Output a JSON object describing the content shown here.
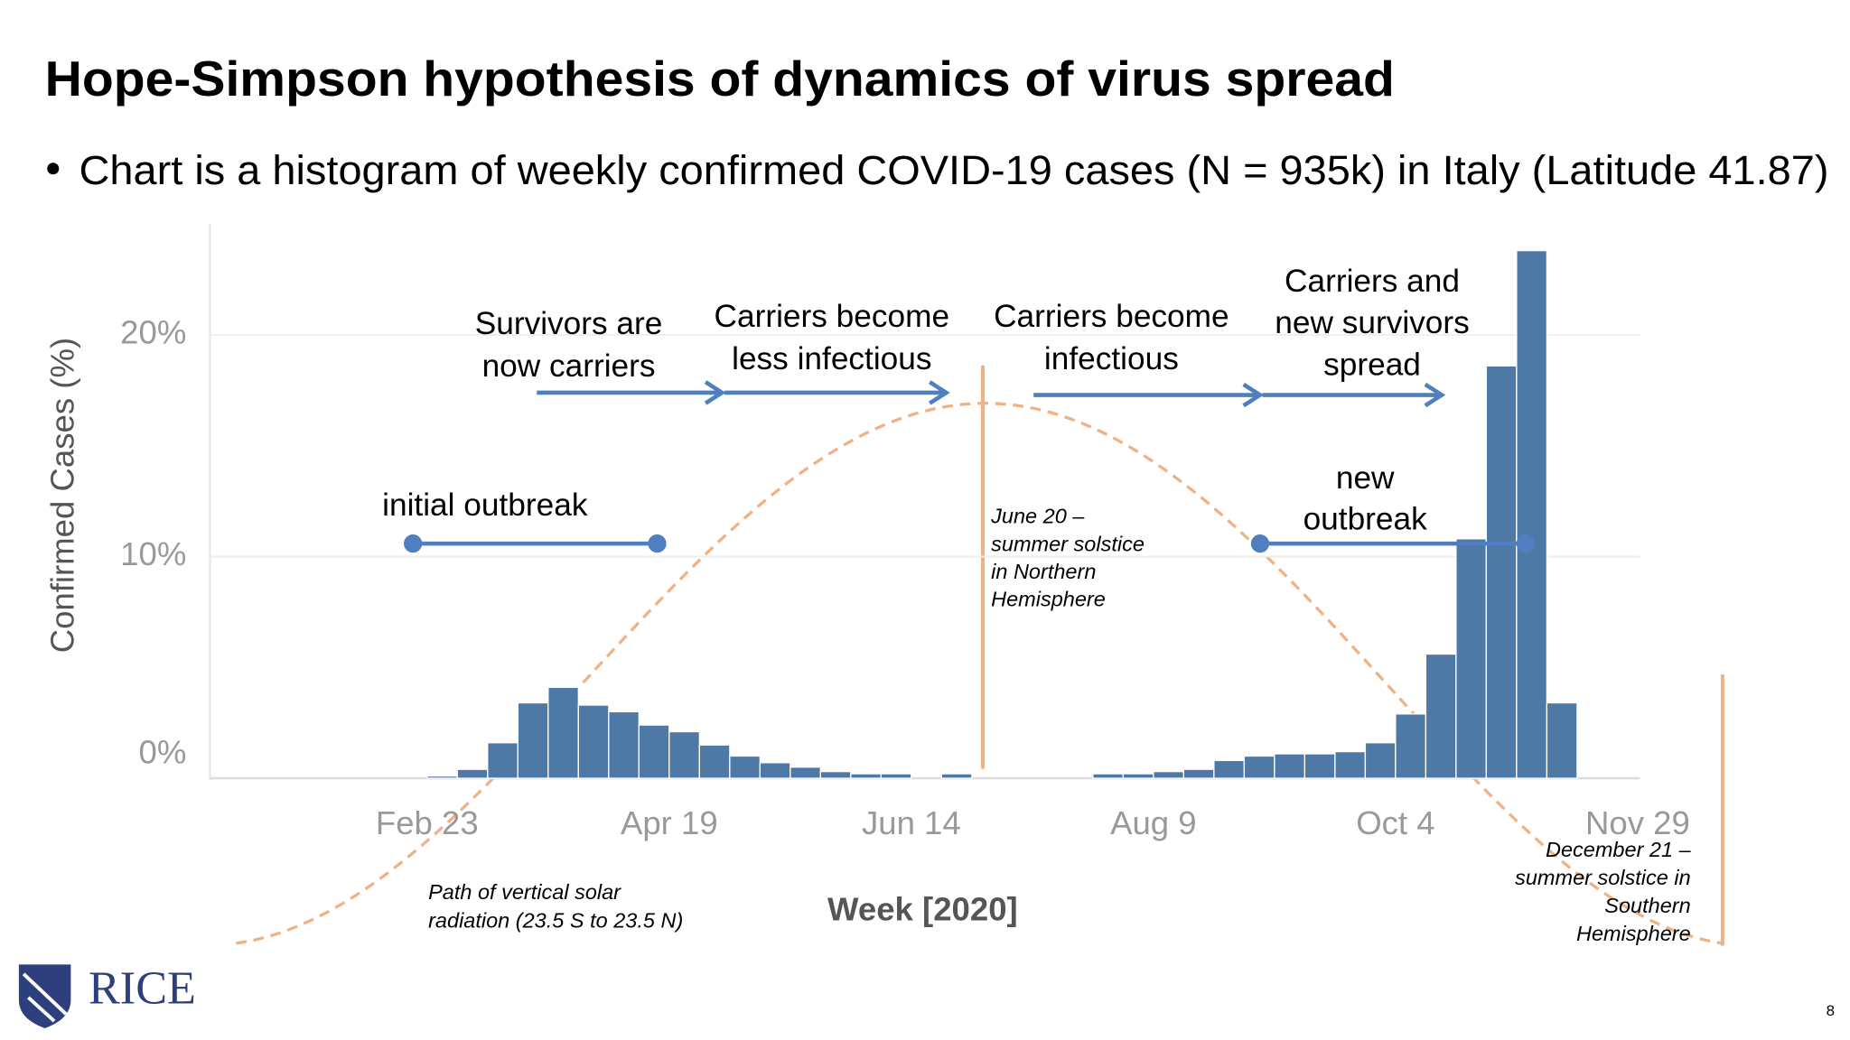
{
  "title": "Hope-Simpson hypothesis of dynamics of virus spread",
  "bullet": "Chart is a histogram of weekly confirmed COVID-19 cases (N = 935k) in Italy (Latitude 41.87)",
  "logo_text": "RICE",
  "page_number": 8,
  "chart_data": {
    "type": "bar",
    "x_label": "Week [2020]",
    "y_label": "Confirmed Cases (%)",
    "color": "#4e79a7",
    "categories": [
      "Feb 23",
      null,
      null,
      null,
      null,
      null,
      null,
      null,
      "Apr 19",
      null,
      null,
      null,
      null,
      null,
      null,
      null,
      "Jun 14",
      null,
      null,
      null,
      null,
      null,
      null,
      null,
      "Aug 9",
      null,
      null,
      null,
      null,
      null,
      null,
      null,
      "Oct 4",
      null,
      null,
      null,
      null,
      null,
      null,
      null,
      "Nov 29"
    ],
    "values": [
      0.1,
      0.4,
      1.6,
      3.4,
      4.1,
      3.3,
      3.0,
      2.4,
      2.1,
      1.5,
      1.0,
      0.7,
      0.5,
      0.3,
      0.2,
      0.2,
      0,
      0.2,
      0,
      0,
      0,
      0,
      0.2,
      0.2,
      0.3,
      0.4,
      0.8,
      1.0,
      1.1,
      1.1,
      1.2,
      1.6,
      2.9,
      5.6,
      10.8,
      18.6,
      23.8,
      3.4,
      null,
      null,
      null
    ],
    "ylim": [
      0,
      25
    ],
    "yticks": [
      {
        "value": 0,
        "label": "0%"
      },
      {
        "value": 10,
        "label": "10%"
      },
      {
        "value": 20,
        "label": "20%"
      }
    ],
    "grid": true,
    "annotations": [
      {
        "lines": [
          "initial outbreak"
        ]
      },
      {
        "lines": [
          "Survivors are",
          "now carriers"
        ]
      },
      {
        "lines": [
          "Carriers become",
          "less infectious"
        ]
      },
      {
        "lines": [
          "Carriers become",
          "infectious"
        ]
      },
      {
        "lines": [
          "Carriers and",
          "new survivors",
          "spread"
        ]
      },
      {
        "lines": [
          "new",
          "outbreak"
        ]
      },
      {
        "lines": [
          "June 20 –",
          "summer solstice",
          "in Northern",
          "Hemisphere"
        ]
      },
      {
        "lines": [
          "Path of vertical solar",
          "radiation (23.5 S to 23.5 N)"
        ]
      },
      {
        "lines": [
          "December 21 –",
          "summer solstice in",
          "Southern",
          "Hemisphere"
        ]
      }
    ]
  }
}
